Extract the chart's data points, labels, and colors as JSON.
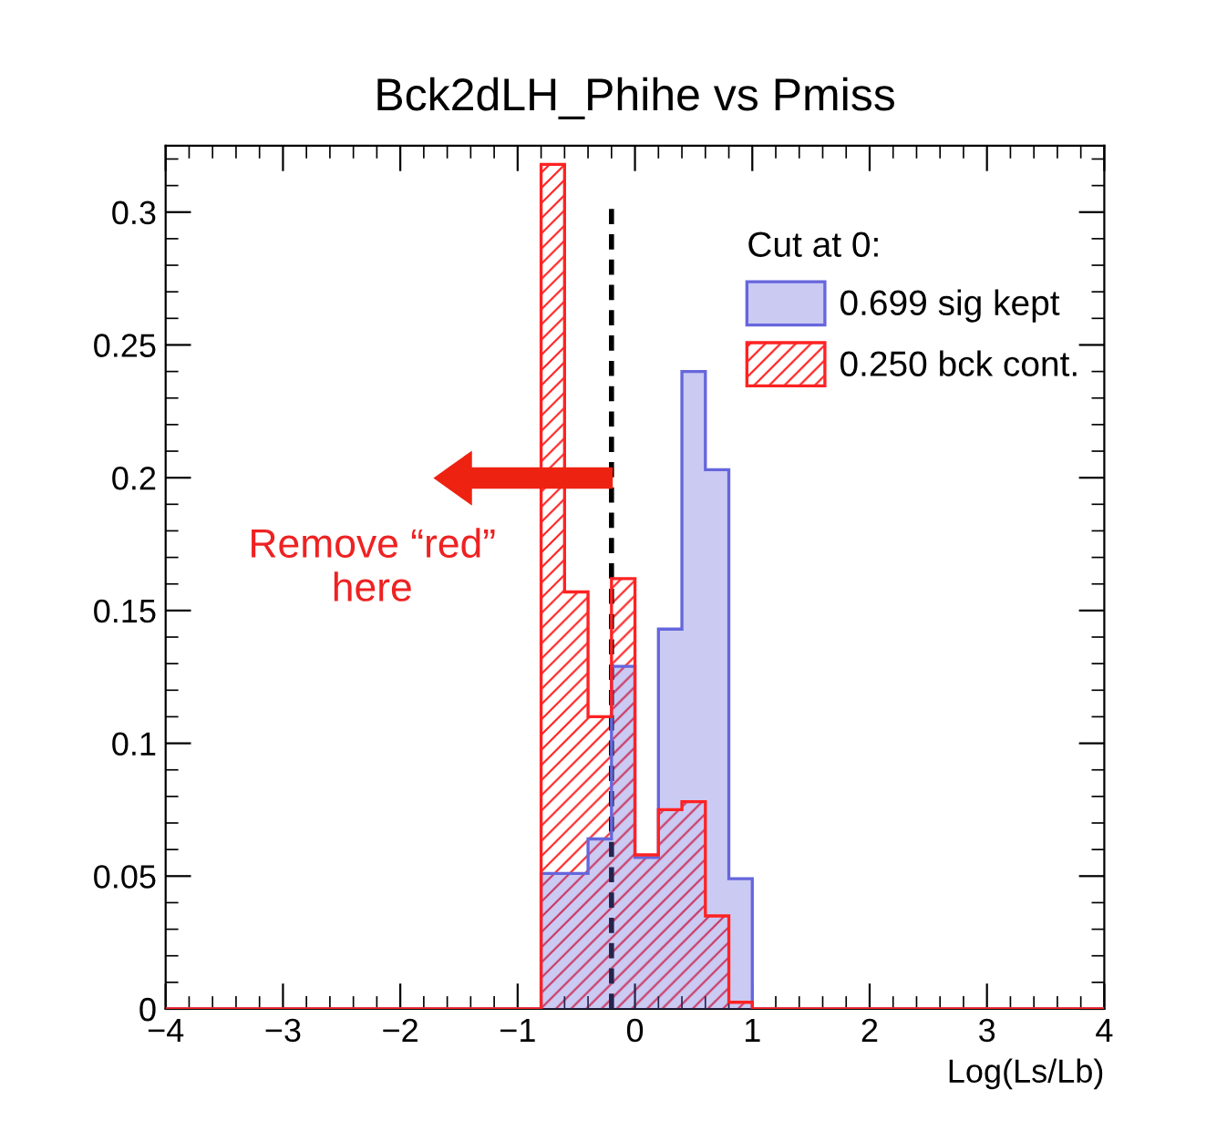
{
  "chart_data": {
    "type": "histogram",
    "title": "Bck2dLH_Phihe vs Pmiss",
    "xlabel": "Log(Ls/Lb)",
    "legend_title": "Cut at 0:",
    "bins": [
      -4,
      -3.8,
      -3.6,
      -3.4,
      -3.2,
      -3,
      -2.8,
      -2.6,
      -2.4,
      -2.2,
      -2,
      -1.8,
      -1.6,
      -1.4,
      -1.2,
      -1,
      -0.8,
      -0.6,
      -0.4,
      -0.2,
      0,
      0.2,
      0.4,
      0.6,
      0.8,
      1,
      1.2,
      1.4,
      1.6,
      1.8,
      2,
      2.2,
      2.4,
      2.6,
      2.8,
      3,
      3.2,
      3.4,
      3.6,
      3.8,
      4
    ],
    "series": [
      {
        "name": "0.699 sig kept",
        "color": "#6666dd",
        "values": [
          0,
          0,
          0,
          0,
          0,
          0,
          0,
          0,
          0,
          0,
          0,
          0,
          0,
          0,
          0,
          0,
          0.051,
          0.051,
          0.064,
          0.129,
          0.057,
          0.143,
          0.24,
          0.203,
          0.049,
          0,
          0,
          0,
          0,
          0,
          0,
          0,
          0,
          0,
          0,
          0,
          0,
          0,
          0,
          0
        ]
      },
      {
        "name": "0.250 bck cont.",
        "color": "#ff2222",
        "values": [
          0,
          0,
          0,
          0,
          0,
          0,
          0,
          0,
          0,
          0,
          0,
          0,
          0,
          0,
          0,
          0,
          0.318,
          0.157,
          0.11,
          0.162,
          0.058,
          0.075,
          0.078,
          0.035,
          0.0025,
          0,
          0,
          0,
          0,
          0,
          0,
          0,
          0,
          0,
          0,
          0,
          0,
          0,
          0,
          0
        ]
      }
    ],
    "xlim": [
      -4,
      4
    ],
    "xticks": [
      {
        "value": -4,
        "label": "−4"
      },
      {
        "value": -3,
        "label": "−3"
      },
      {
        "value": -2,
        "label": "−2"
      },
      {
        "value": -1,
        "label": "−1"
      },
      0,
      1,
      2,
      3,
      4
    ],
    "ylim": [
      0,
      0.325
    ],
    "yticks": [
      0,
      0.05,
      0.1,
      0.15,
      0.2,
      0.25,
      0.3
    ],
    "ref_lines": [
      {
        "axis": "x",
        "value": -0.2,
        "color": "#000000",
        "line_style": "dashed"
      }
    ],
    "annotations": [
      "Remove “red”\nhere"
    ],
    "legend": "top right",
    "grid": false
  }
}
